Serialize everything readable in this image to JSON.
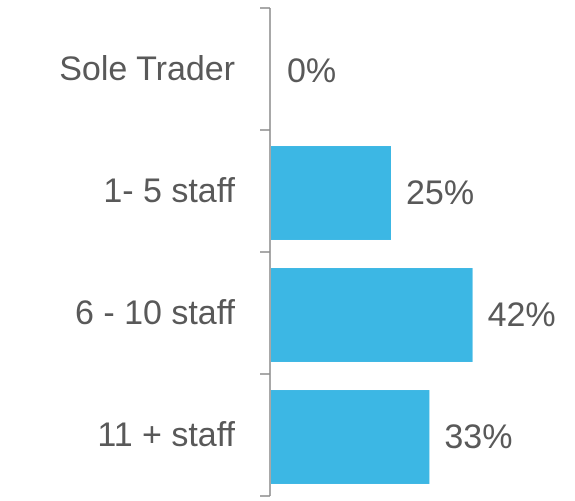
{
  "chart_data": {
    "type": "bar",
    "orientation": "horizontal",
    "categories": [
      "Sole Trader",
      "1- 5 staff",
      "6 - 10 staff",
      "11 + staff"
    ],
    "values": [
      0,
      25,
      42,
      33
    ],
    "value_labels": [
      "0%",
      "25%",
      "42%",
      "33%"
    ],
    "color": "#3cb7e4"
  }
}
